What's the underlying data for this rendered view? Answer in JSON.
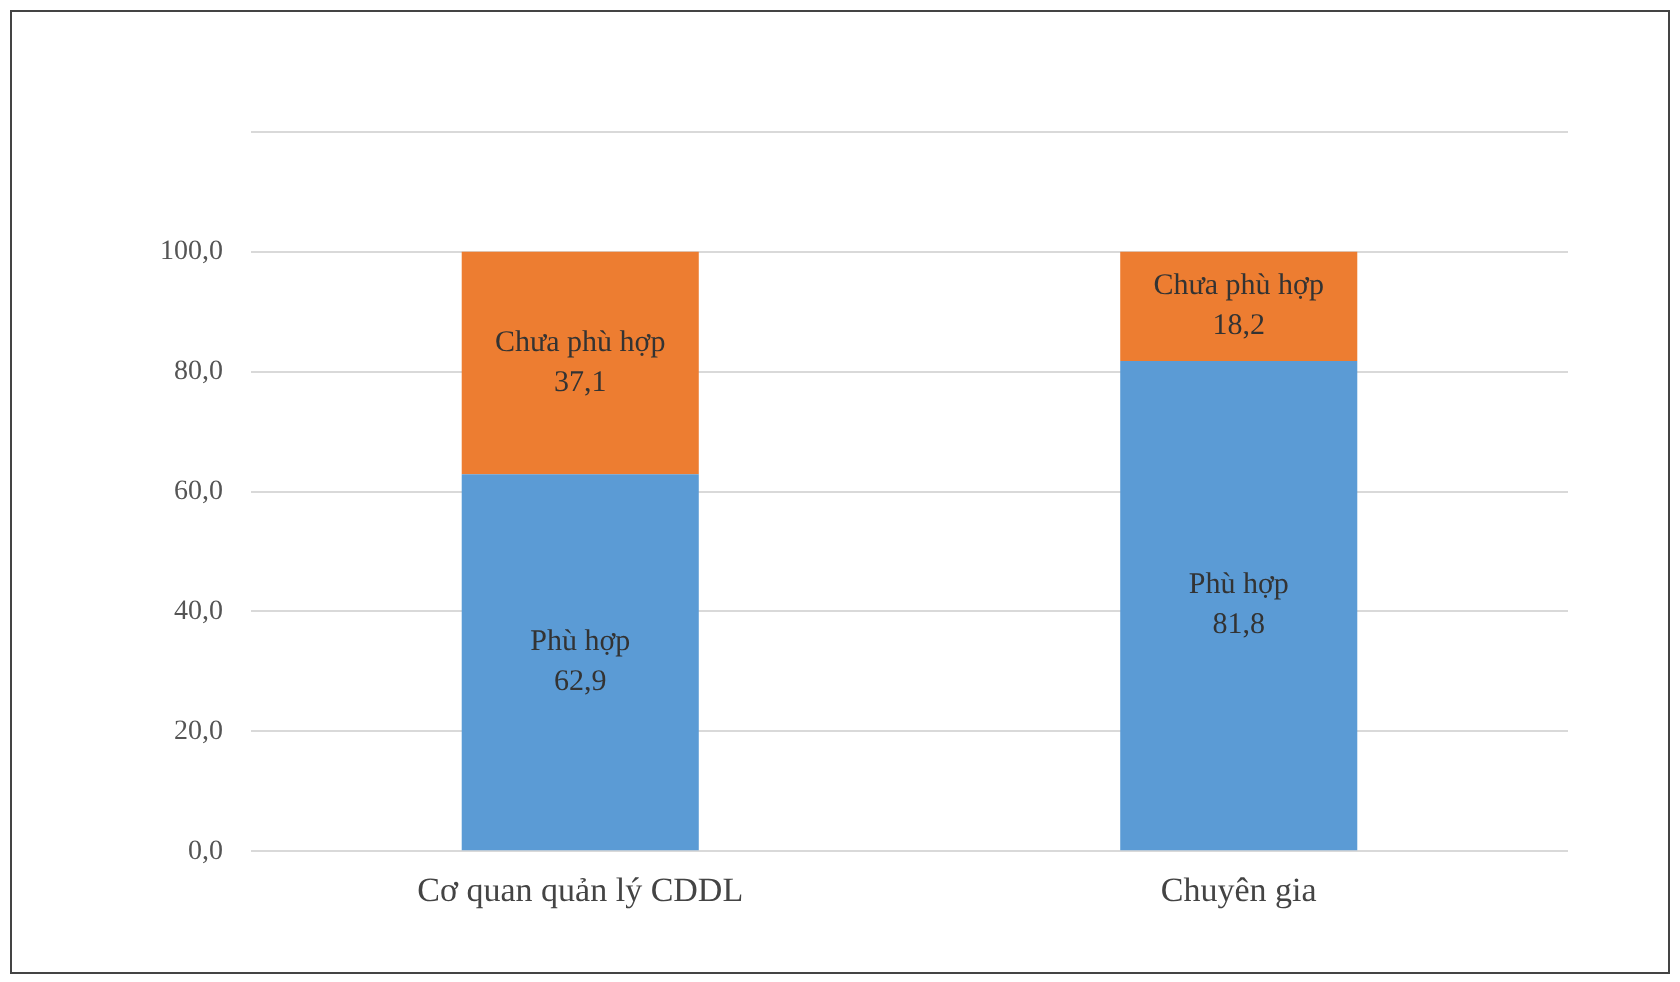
{
  "chart_data": {
    "type": "bar",
    "stacked": true,
    "categories": [
      "Cơ quan quản lý CDDL",
      "Chuyên gia"
    ],
    "series": [
      {
        "name": "Phù hợp",
        "color": "#5b9bd5",
        "values": [
          62.9,
          81.8
        ],
        "value_labels": [
          "62,9",
          "81,8"
        ]
      },
      {
        "name": "Chưa phù hợp",
        "color": "#ed7d31",
        "values": [
          37.1,
          18.2
        ],
        "value_labels": [
          "37,1",
          "18,2"
        ]
      }
    ],
    "ylim": [
      0,
      120
    ],
    "yticks": [
      {
        "value": 0,
        "label": "0,0"
      },
      {
        "value": 20,
        "label": "20,0"
      },
      {
        "value": 40,
        "label": "40,0"
      },
      {
        "value": 60,
        "label": "60,0"
      },
      {
        "value": 80,
        "label": "80,0"
      },
      {
        "value": 100,
        "label": "100,0"
      },
      {
        "value": 120,
        "label": null
      }
    ],
    "grid": "y",
    "legend": false
  }
}
